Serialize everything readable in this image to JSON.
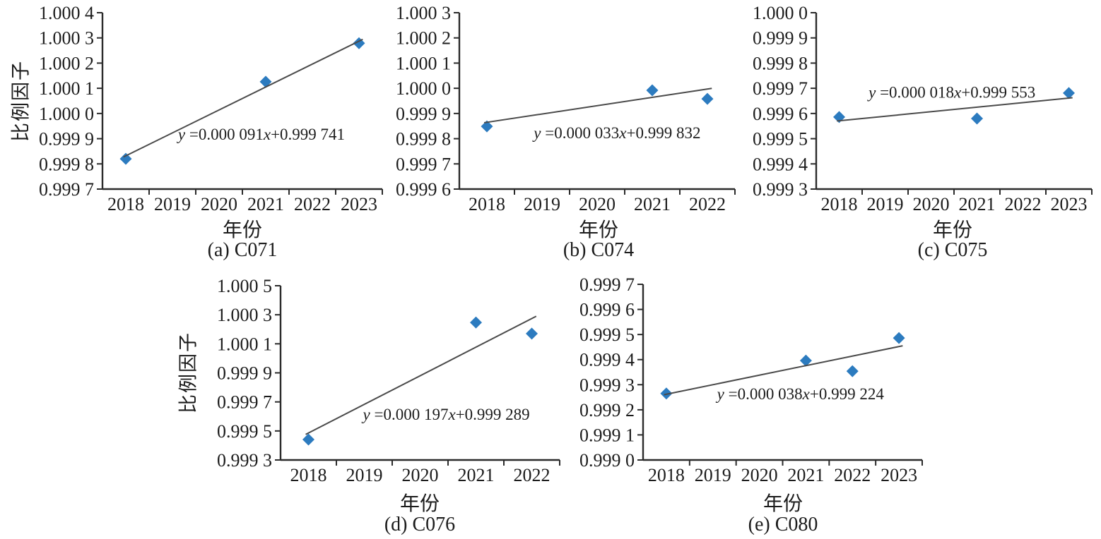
{
  "figure": {
    "background": "#ffffff",
    "marker_color": "#2C7BBF",
    "trend_line_color": "#4a4a4a",
    "axis_color": "#2b2b2b",
    "text_color": "#1c1c1c",
    "marker_shape": "diamond"
  },
  "chart_data": [
    {
      "key": "a",
      "type": "scatter",
      "caption": "(a) C071",
      "station": "C071",
      "xlabel": "年份",
      "ylabel": "比例因子",
      "years": [
        2018,
        2019,
        2020,
        2021,
        2022,
        2023
      ],
      "points": [
        {
          "x": 2018,
          "y": 0.99982
        },
        {
          "x": 2021,
          "y": 1.000126
        },
        {
          "x": 2023,
          "y": 1.000279
        }
      ],
      "trend": {
        "slope": 9.1e-05,
        "intercept": 0.999741,
        "equation": "y =0.000 091x+0.999 741",
        "eq_parts": [
          [
            "y",
            1
          ],
          [
            " =0.000 091",
            0
          ],
          [
            "x",
            1
          ],
          [
            "+0.999 741",
            0
          ]
        ]
      },
      "ylim": [
        0.9997,
        1.0004
      ],
      "y_tick_labels": [
        "1.000 4",
        "1.000 3",
        "1.000 2",
        "1.000 1",
        "1.000 0",
        "0.999 9",
        "0.999 8",
        "0.999 7"
      ],
      "eq_label_pos": [
        0.27,
        0.688
      ]
    },
    {
      "key": "b",
      "type": "scatter",
      "caption": "(b) C074",
      "station": "C074",
      "xlabel": "年份",
      "ylabel": "",
      "years": [
        2018,
        2019,
        2020,
        2021,
        2022
      ],
      "points": [
        {
          "x": 2018,
          "y": 0.999849
        },
        {
          "x": 2021,
          "y": 0.999992
        },
        {
          "x": 2022,
          "y": 0.999958
        }
      ],
      "trend": {
        "slope": 3.3e-05,
        "intercept": 0.999832,
        "equation": "y =0.000 033x+0.999 832",
        "eq_parts": [
          [
            "y",
            1
          ],
          [
            " =0.000 033",
            0
          ],
          [
            "x",
            1
          ],
          [
            "+0.999 832",
            0
          ]
        ]
      },
      "ylim": [
        0.9996,
        1.0003
      ],
      "y_tick_labels": [
        "1.000 3",
        "1.000 2",
        "1.000 1",
        "1.000 0",
        "0.999 9",
        "0.999 8",
        "0.999 7",
        "0.999 6"
      ],
      "eq_label_pos": [
        0.27,
        0.68
      ]
    },
    {
      "key": "c",
      "type": "scatter",
      "caption": "(c) C075",
      "station": "C075",
      "xlabel": "年份",
      "ylabel": "",
      "years": [
        2018,
        2019,
        2020,
        2021,
        2022,
        2023
      ],
      "points": [
        {
          "x": 2018,
          "y": 0.999586
        },
        {
          "x": 2021,
          "y": 0.99958
        },
        {
          "x": 2023,
          "y": 0.999681
        }
      ],
      "trend": {
        "slope": 1.8e-05,
        "intercept": 0.999553,
        "equation": "y =0.000 018x+0.999 553",
        "eq_parts": [
          [
            "y",
            1
          ],
          [
            " =0.000 018",
            0
          ],
          [
            "x",
            1
          ],
          [
            "+0.999 553",
            0
          ]
        ]
      },
      "ylim": [
        0.9993,
        1.0
      ],
      "y_tick_labels": [
        "1.000 0",
        "0.999 9",
        "0.999 8",
        "0.999 7",
        "0.999 6",
        "0.999 5",
        "0.999 4",
        "0.999 3"
      ],
      "eq_label_pos": [
        0.19,
        0.45
      ]
    },
    {
      "key": "d",
      "type": "scatter",
      "caption": "(d) C076",
      "station": "C076",
      "xlabel": "年份",
      "ylabel": "比例因子",
      "years": [
        2018,
        2019,
        2020,
        2021,
        2022
      ],
      "points": [
        {
          "x": 2018,
          "y": 0.999441
        },
        {
          "x": 2021,
          "y": 1.000247
        },
        {
          "x": 2022,
          "y": 1.00017
        }
      ],
      "trend": {
        "slope": 0.000197,
        "intercept": 0.999289,
        "equation": "y =0.000 197x+0.999 289",
        "eq_parts": [
          [
            "y",
            1
          ],
          [
            " =0.000 197",
            0
          ],
          [
            "x",
            1
          ],
          [
            "+0.999 289",
            0
          ]
        ]
      },
      "ylim": [
        0.9993,
        1.0005
      ],
      "y_tick_labels": [
        "1.000 5",
        "1.000 3",
        "1.000 1",
        "0.999 9",
        "0.999 7",
        "0.999 5",
        "0.999 3"
      ],
      "eq_label_pos": [
        0.295,
        0.737
      ]
    },
    {
      "key": "e",
      "type": "scatter",
      "caption": "(e) C080",
      "station": "C080",
      "xlabel": "年份",
      "ylabel": "",
      "years": [
        2018,
        2019,
        2020,
        2021,
        2022,
        2023
      ],
      "points": [
        {
          "x": 2018,
          "y": 0.999265
        },
        {
          "x": 2021,
          "y": 0.999396
        },
        {
          "x": 2022,
          "y": 0.999354
        },
        {
          "x": 2023,
          "y": 0.999486
        }
      ],
      "trend": {
        "slope": 3.8e-05,
        "intercept": 0.999224,
        "equation": "y =0.000 038x+0.999 224",
        "eq_parts": [
          [
            "y",
            1
          ],
          [
            " =0.000 038",
            0
          ],
          [
            "x",
            1
          ],
          [
            "+0.999 224",
            0
          ]
        ]
      },
      "ylim": [
        0.999,
        0.9997
      ],
      "y_tick_labels": [
        "0.999 7",
        "0.999 6",
        "0.999 5",
        "0.999 4",
        "0.999 3",
        "0.999 2",
        "0.999 1",
        "0.999 0"
      ],
      "eq_label_pos": [
        0.265,
        0.622
      ]
    }
  ]
}
